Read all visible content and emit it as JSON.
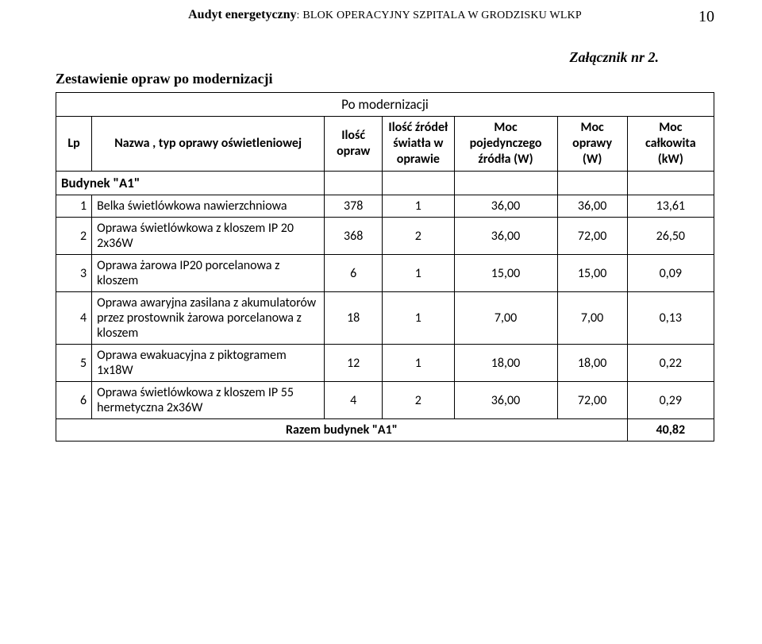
{
  "header": {
    "bold_part": "Audyt energetyczny",
    "rest_part": ": BLOK OPERACYJNY SZPITALA  W GRODZISKU WLKP",
    "page_number": "10"
  },
  "attachment_label": "Załącznik nr 2.",
  "subtitle": "Zestawienie opraw po modernizacji",
  "table": {
    "caption": "Po modernizacji",
    "columns": {
      "lp": "Lp",
      "name": "Nazwa , typ  oprawy oświetleniowej",
      "qty_fixtures": "Ilość opraw",
      "qty_sources": "Ilość źródeł światła w oprawie",
      "single_power": "Moc pojedynczego źródła (W)",
      "fixture_power": "Moc oprawy (W)",
      "total_power": "Moc całkowita (kW)"
    },
    "section_label": "Budynek \"A1\"",
    "rows": [
      {
        "lp": "1",
        "name": "Belka świetlówkowa nawierzchniowa",
        "c1": "378",
        "c2": "1",
        "c3": "36,00",
        "c4": "36,00",
        "c5": "13,61"
      },
      {
        "lp": "2",
        "name": "Oprawa świetlówkowa z kloszem IP 20 2x36W",
        "c1": "368",
        "c2": "2",
        "c3": "36,00",
        "c4": "72,00",
        "c5": "26,50"
      },
      {
        "lp": "3",
        "name": "Oprawa żarowa IP20  porcelanowa z kloszem",
        "c1": "6",
        "c2": "1",
        "c3": "15,00",
        "c4": "15,00",
        "c5": "0,09"
      },
      {
        "lp": "4",
        "name": "Oprawa awaryjna zasilana z akumulatorów przez prostownik żarowa porcelanowa z kloszem",
        "c1": "18",
        "c2": "1",
        "c3": "7,00",
        "c4": "7,00",
        "c5": "0,13"
      },
      {
        "lp": "5",
        "name": "Oprawa ewakuacyjna z piktogramem 1x18W",
        "c1": "12",
        "c2": "1",
        "c3": "18,00",
        "c4": "18,00",
        "c5": "0,22"
      },
      {
        "lp": "6",
        "name": "Oprawa świetlówkowa z kloszem IP 55 hermetyczna  2x36W",
        "c1": "4",
        "c2": "2",
        "c3": "36,00",
        "c4": "72,00",
        "c5": "0,29"
      }
    ],
    "total_label": "Razem budynek \"A1\"",
    "total_value": "40,82"
  }
}
